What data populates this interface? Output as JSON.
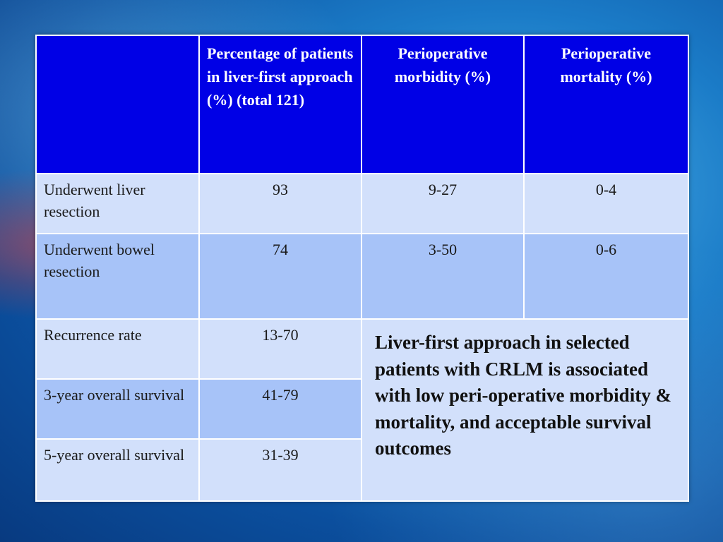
{
  "table": {
    "headers": [
      "",
      "Percentage of patients  in liver-first approach (%) (total 121)",
      "Perioperative morbidity (%)",
      "Perioperative mortality (%)"
    ],
    "rows": [
      {
        "label": "Underwent liver resection",
        "percentage": "93",
        "morbidity": "9-27",
        "mortality": "0-4"
      },
      {
        "label": "Underwent bowel resection",
        "percentage": "74",
        "morbidity": "3-50",
        "mortality": "0-6"
      },
      {
        "label": "Recurrence rate",
        "percentage": "13-70"
      },
      {
        "label": "3-year overall survival",
        "percentage": "41-79"
      },
      {
        "label": "5-year overall survival",
        "percentage": "31-39"
      }
    ],
    "conclusion": "Liver-first approach in selected patients with CRLM is associated with low peri-operative morbidity & mortality, and acceptable survival outcomes"
  },
  "colors": {
    "header_bg": "#0000e6",
    "row_light": "#d2e0fb",
    "row_mid": "#a7c3f8",
    "background": "#1b7cc8"
  }
}
